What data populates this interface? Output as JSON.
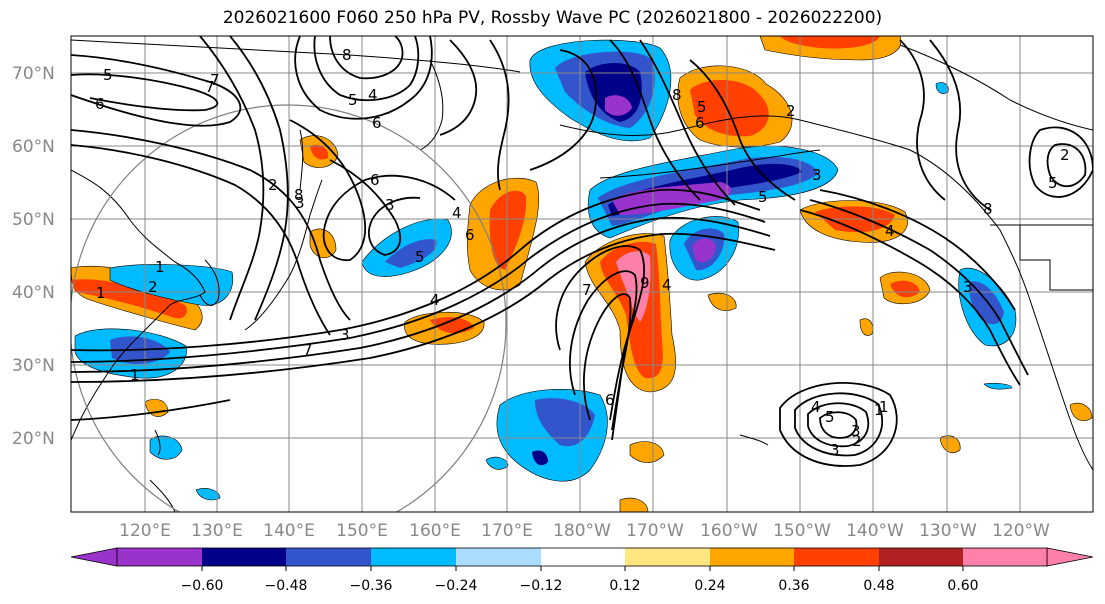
{
  "title": "2026021600 F060 250 hPa PV, Rossby Wave PC (2026021800 - 2026022200)",
  "lat_labels": [
    "20°N",
    "30°N",
    "40°N",
    "50°N",
    "60°N",
    "70°N"
  ],
  "lon_labels": [
    "120°E",
    "130°E",
    "140°E",
    "150°E",
    "160°E",
    "170°E",
    "180°W",
    "170°W",
    "160°W",
    "150°W",
    "140°W",
    "130°W",
    "120°W"
  ],
  "colorbar": {
    "labels": [
      "−0.60",
      "−0.48",
      "−0.36",
      "−0.24",
      "−0.12",
      "0.12",
      "0.24",
      "0.36",
      "0.48",
      "0.60"
    ],
    "colors": [
      "#9933cc",
      "#000088",
      "#3355cc",
      "#00bbff",
      "#aaddff",
      "#ffffff",
      "#ffe680",
      "#ffa500",
      "#ff4000",
      "#b22222",
      "#ff80a8"
    ],
    "extend_low_color": "#9933cc",
    "extend_high_color": "#ff80a8"
  },
  "contour_labels": [
    "5",
    "6",
    "7",
    "8",
    "4",
    "5",
    "6",
    "1",
    "2",
    "1",
    "1",
    "2",
    "3",
    "7",
    "3",
    "4",
    "6",
    "3",
    "4",
    "5",
    "6",
    "7",
    "8",
    "9",
    "2",
    "3",
    "4",
    "5",
    "6",
    "4",
    "3",
    "2",
    "1",
    "5",
    "3",
    "5",
    "4",
    "3",
    "2",
    "1",
    "5",
    "8",
    "6",
    "7",
    "8"
  ],
  "colors": {
    "axis": "#000000",
    "grid": "#888888",
    "coast": "#000000",
    "contour": "#000000",
    "circle": "#808080",
    "tick_label": "#888888"
  }
}
